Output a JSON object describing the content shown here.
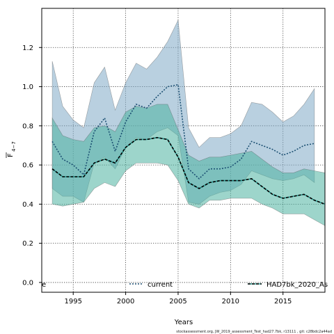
{
  "chart_data": {
    "type": "area",
    "xlabel": "Years",
    "ylabel_main": "F",
    "ylabel_sub": "4−7",
    "xlim": [
      1992,
      2019
    ],
    "ylim": [
      -0.05,
      1.4
    ],
    "xticks": [
      1995,
      2000,
      2005,
      2010,
      2015
    ],
    "yticks": [
      0.0,
      0.2,
      0.4,
      0.6,
      0.8,
      1.0,
      1.2
    ],
    "ytick_labels": [
      "0.0",
      "0.2",
      "0.4",
      "0.6",
      "0.8",
      "1.0",
      "1.2"
    ],
    "grid": true,
    "legend_placement": "bottom",
    "corner_label": "e",
    "footer": "stockassessment.org, JW_2019_assessment_Test_had27.7bk, r13111 , git: c28bdc2a44ad",
    "series": [
      {
        "name": "current",
        "color": "#1b4f72",
        "band_color": "#7fa9c6",
        "line_style": "dotted",
        "x": [
          1993,
          1994,
          1995,
          1996,
          1997,
          1998,
          1999,
          2000,
          2001,
          2002,
          2003,
          2004,
          2005,
          2006,
          2007,
          2008,
          2009,
          2010,
          2011,
          2012,
          2013,
          2014,
          2015,
          2016,
          2017,
          2018
        ],
        "values": [
          0.72,
          0.63,
          0.6,
          0.55,
          0.77,
          0.84,
          0.67,
          0.82,
          0.91,
          0.89,
          0.95,
          1.0,
          1.01,
          0.58,
          0.53,
          0.58,
          0.58,
          0.59,
          0.63,
          0.72,
          0.7,
          0.68,
          0.65,
          0.67,
          0.7,
          0.71
        ],
        "lower": [
          0.48,
          0.44,
          0.44,
          0.41,
          0.61,
          0.64,
          0.58,
          0.69,
          0.74,
          0.73,
          0.77,
          0.79,
          0.75,
          0.41,
          0.4,
          0.44,
          0.46,
          0.47,
          0.5,
          0.57,
          0.55,
          0.53,
          0.52,
          0.53,
          0.55,
          0.51
        ],
        "upper": [
          1.13,
          0.9,
          0.83,
          0.79,
          1.02,
          1.1,
          0.88,
          1.02,
          1.12,
          1.09,
          1.15,
          1.23,
          1.34,
          0.79,
          0.69,
          0.74,
          0.74,
          0.76,
          0.8,
          0.92,
          0.91,
          0.87,
          0.82,
          0.85,
          0.91,
          0.99
        ]
      },
      {
        "name": "HAD7bk_2020_As",
        "color": "#000000",
        "band_color": "#4db3a0",
        "line_style": "dashed",
        "x": [
          1993,
          1994,
          1995,
          1996,
          1997,
          1998,
          1999,
          2000,
          2001,
          2002,
          2003,
          2004,
          2005,
          2006,
          2007,
          2008,
          2009,
          2010,
          2011,
          2012,
          2013,
          2014,
          2015,
          2016,
          2017,
          2018,
          2019
        ],
        "values": [
          0.58,
          0.54,
          0.54,
          0.54,
          0.61,
          0.63,
          0.61,
          0.69,
          0.73,
          0.73,
          0.74,
          0.73,
          0.64,
          0.51,
          0.48,
          0.51,
          0.52,
          0.52,
          0.52,
          0.53,
          0.49,
          0.45,
          0.43,
          0.44,
          0.45,
          0.42,
          0.4
        ],
        "lower": [
          0.4,
          0.39,
          0.4,
          0.41,
          0.48,
          0.51,
          0.49,
          0.57,
          0.61,
          0.61,
          0.61,
          0.6,
          0.52,
          0.4,
          0.38,
          0.42,
          0.42,
          0.43,
          0.43,
          0.43,
          0.4,
          0.38,
          0.35,
          0.35,
          0.35,
          0.32,
          0.29
        ],
        "upper": [
          0.84,
          0.75,
          0.73,
          0.72,
          0.79,
          0.8,
          0.77,
          0.87,
          0.9,
          0.89,
          0.91,
          0.91,
          0.78,
          0.65,
          0.62,
          0.64,
          0.64,
          0.65,
          0.66,
          0.67,
          0.63,
          0.59,
          0.56,
          0.56,
          0.58,
          0.57,
          0.56
        ]
      }
    ]
  }
}
